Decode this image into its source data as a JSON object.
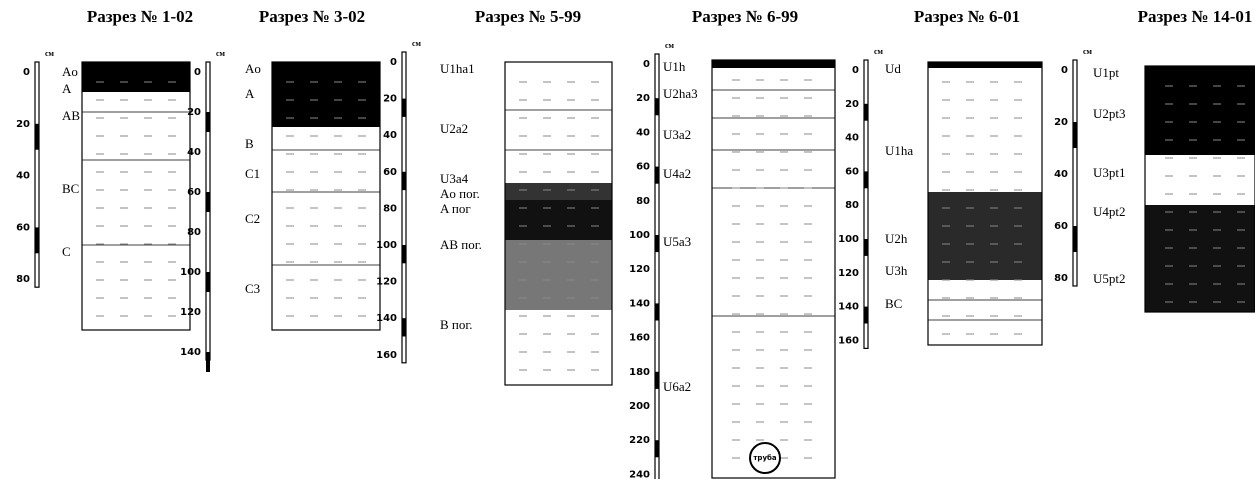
{
  "profiles": [
    {
      "title": "Разрез № 1-02",
      "unit": "см",
      "ticks": [
        0,
        20,
        40,
        60,
        80
      ],
      "horizons": [
        "Ao",
        "A",
        "AB",
        "BC",
        "C"
      ]
    },
    {
      "title": "Разрез № 3-02",
      "unit": "см",
      "ticks": [
        0,
        20,
        40,
        60,
        80,
        100,
        120,
        140
      ],
      "horizons": [
        "Ao",
        "A",
        "B",
        "C1",
        "C2",
        "C3"
      ]
    },
    {
      "title": "Разрез № 5-99",
      "unit": "см",
      "ticks": [
        0,
        20,
        40,
        60,
        80,
        100,
        120,
        140,
        160
      ],
      "horizons": [
        "U1ha1",
        "U2a2",
        "U3a4",
        "Ao пог.",
        "A пог",
        "AB пог.",
        "B пог."
      ]
    },
    {
      "title": "Разрез № 6-99",
      "unit": "см",
      "ticks": [
        0,
        20,
        40,
        60,
        80,
        100,
        120,
        140,
        160,
        180,
        200,
        220,
        240
      ],
      "horizons": [
        "U1h",
        "U2ha3",
        "U3a2",
        "U4a2",
        "U5a3",
        "U6a2"
      ],
      "note": "труба"
    },
    {
      "title": "Разрез № 6-01",
      "unit": "см",
      "ticks": [
        0,
        20,
        40,
        60,
        80,
        100,
        120,
        140,
        160
      ],
      "horizons": [
        "Ud",
        "U1ha",
        "U2h",
        "U3h",
        "BC"
      ]
    },
    {
      "title": "Разрез № 14-01",
      "unit": "см",
      "ticks": [
        0,
        20,
        40,
        60,
        80
      ],
      "horizons": [
        "U1pt",
        "U2pt3",
        "U3pt1",
        "U4pt2",
        "U5pt2"
      ]
    }
  ]
}
